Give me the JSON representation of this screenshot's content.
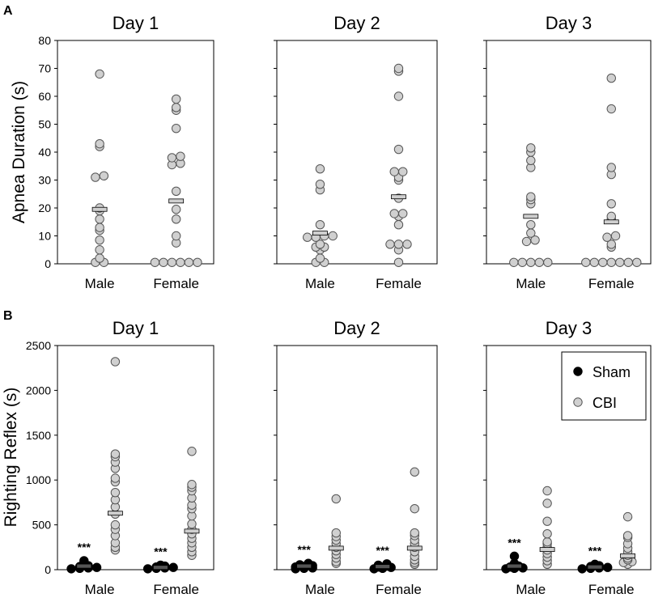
{
  "panel_labels": {
    "a": "A",
    "b": "B"
  },
  "chart_data": [
    {
      "type": "scatter",
      "panel": "A",
      "ylabel": "Apnea Duration (s)",
      "ylim": [
        0,
        80
      ],
      "yticks": [
        0,
        10,
        20,
        30,
        40,
        50,
        60,
        70,
        80
      ],
      "subplots": [
        {
          "title": "Day 1",
          "categories": [
            "Male",
            "Female"
          ],
          "groups": [
            {
              "category": "Male",
              "series": "CBI",
              "mean": 19.5,
              "values": [
                68,
                43,
                42,
                31.5,
                31,
                20,
                19,
                16,
                13,
                12,
                8.5,
                5,
                2,
                0.5,
                0.5
              ]
            },
            {
              "category": "Female",
              "series": "CBI",
              "mean": 22.5,
              "values": [
                59,
                56,
                55,
                48.5,
                38.5,
                38,
                36,
                35.5,
                26,
                19.5,
                16,
                10,
                7.5,
                0.5,
                0.5,
                0.5,
                0.5,
                0.5,
                0.5
              ]
            }
          ]
        },
        {
          "title": "Day 2",
          "categories": [
            "Male",
            "Female"
          ],
          "groups": [
            {
              "category": "Male",
              "series": "CBI",
              "mean": 11,
              "values": [
                34,
                28.5,
                26.5,
                14,
                10,
                10,
                9.5,
                9.5,
                7,
                6,
                6,
                5,
                2,
                0.5,
                0.5
              ]
            },
            {
              "category": "Female",
              "series": "CBI",
              "mean": 24,
              "values": [
                70,
                69,
                60,
                41,
                33,
                33,
                31,
                30,
                23.5,
                18,
                18,
                17,
                14,
                7,
                7,
                7,
                5,
                0.5
              ]
            }
          ]
        },
        {
          "title": "Day 3",
          "categories": [
            "Male",
            "Female"
          ],
          "groups": [
            {
              "category": "Male",
              "series": "CBI",
              "mean": 17,
              "values": [
                41.5,
                40,
                37,
                34.5,
                24,
                23,
                21.5,
                14,
                11,
                8.5,
                8,
                0.5,
                0.5,
                0.5,
                0.5,
                0.5
              ]
            },
            {
              "category": "Female",
              "series": "CBI",
              "mean": 15,
              "values": [
                66.5,
                55.5,
                34.5,
                32,
                21.5,
                17,
                16,
                10,
                9.5,
                7,
                6,
                0.5,
                0.5,
                0.5,
                0.5,
                0.5,
                0.5,
                0.5
              ]
            }
          ]
        }
      ]
    },
    {
      "type": "scatter",
      "panel": "B",
      "ylabel": "Righting Reflex (s)",
      "ylim": [
        0,
        2500
      ],
      "yticks": [
        0,
        500,
        1000,
        1500,
        2000,
        2500
      ],
      "legend": {
        "position": "top-right",
        "entries": [
          {
            "name": "Sham",
            "color": "#000000"
          },
          {
            "name": "CBI",
            "color": "#d0d0d0"
          }
        ]
      },
      "annotation": "***",
      "subplots": [
        {
          "title": "Day 1",
          "categories": [
            "Male",
            "Female"
          ],
          "groups": [
            {
              "category": "Male",
              "series": "Sham",
              "mean": 40,
              "values": [
                100,
                80,
                60,
                45,
                35,
                25,
                20,
                15,
                10
              ]
            },
            {
              "category": "Male",
              "series": "CBI",
              "mean": 630,
              "values": [
                2320,
                1290,
                1260,
                1200,
                1130,
                1020,
                980,
                860,
                780,
                700,
                620,
                500,
                450,
                380,
                300,
                250,
                220
              ]
            },
            {
              "category": "Female",
              "series": "Sham",
              "mean": 25,
              "values": [
                50,
                40,
                30,
                25,
                20,
                15,
                10
              ]
            },
            {
              "category": "Female",
              "series": "CBI",
              "mean": 430,
              "values": [
                1320,
                950,
                920,
                880,
                800,
                720,
                680,
                600,
                510,
                450,
                400,
                350,
                300,
                250,
                200,
                160
              ]
            }
          ]
        },
        {
          "title": "Day 2",
          "categories": [
            "Male",
            "Female"
          ],
          "groups": [
            {
              "category": "Male",
              "series": "Sham",
              "mean": 40,
              "values": [
                70,
                55,
                45,
                35,
                30,
                20,
                15,
                10
              ]
            },
            {
              "category": "Male",
              "series": "CBI",
              "mean": 240,
              "values": [
                790,
                410,
                370,
                330,
                290,
                250,
                210,
                170,
                130,
                90,
                70
              ]
            },
            {
              "category": "Female",
              "series": "Sham",
              "mean": 35,
              "values": [
                65,
                50,
                40,
                30,
                25,
                15,
                10
              ]
            },
            {
              "category": "Female",
              "series": "CBI",
              "mean": 240,
              "values": [
                1090,
                680,
                410,
                380,
                330,
                290,
                250,
                200,
                150,
                110,
                80,
                60
              ]
            }
          ]
        },
        {
          "title": "Day 3",
          "categories": [
            "Male",
            "Female"
          ],
          "groups": [
            {
              "category": "Male",
              "series": "Sham",
              "mean": 40,
              "values": [
                150,
                70,
                50,
                40,
                30,
                20,
                15,
                10
              ]
            },
            {
              "category": "Male",
              "series": "CBI",
              "mean": 225,
              "values": [
                880,
                740,
                540,
                400,
                310,
                290,
                250,
                220,
                180,
                140,
                100,
                60
              ]
            },
            {
              "category": "Female",
              "series": "Sham",
              "mean": 30,
              "values": [
                60,
                45,
                35,
                25,
                20,
                15,
                10
              ]
            },
            {
              "category": "Female",
              "series": "CBI",
              "mean": 155,
              "values": [
                590,
                380,
                360,
                290,
                240,
                200,
                160,
                130,
                110,
                90,
                80,
                60
              ]
            }
          ]
        }
      ]
    }
  ]
}
